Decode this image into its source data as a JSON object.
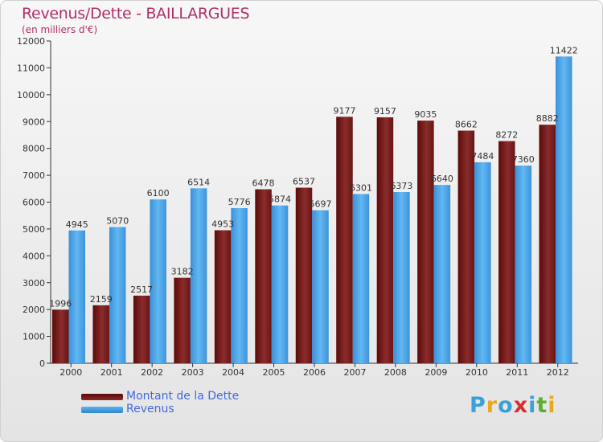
{
  "header": {
    "title": "Revenus/Dette - BAILLARGUES",
    "subtitle": "(en milliers d'€)"
  },
  "legend": [
    {
      "label": "Montant de la Dette",
      "color": "#7a1a1a"
    },
    {
      "label": "Revenus",
      "color": "#4aa3e6"
    }
  ],
  "logo": {
    "text": "Proxiti",
    "letters": [
      {
        "ch": "P",
        "color": "#3aa0d8"
      },
      {
        "ch": "r",
        "color": "#e8a820"
      },
      {
        "ch": "o",
        "color": "#3aa0d8"
      },
      {
        "ch": "x",
        "color": "#d83030"
      },
      {
        "ch": "i",
        "color": "#3aa0d8"
      },
      {
        "ch": "t",
        "color": "#5ab030"
      },
      {
        "ch": "i",
        "color": "#e8a820"
      }
    ]
  },
  "chart_data": {
    "type": "bar",
    "title": "Revenus/Dette - BAILLARGUES",
    "subtitle": "(en milliers d'€)",
    "categories": [
      "2000",
      "2001",
      "2002",
      "2003",
      "2004",
      "2005",
      "2006",
      "2007",
      "2008",
      "2009",
      "2010",
      "2011",
      "2012"
    ],
    "series": [
      {
        "name": "Montant de la Dette",
        "color": "#7a1a1a",
        "values": [
          1996,
          2159,
          2517,
          3182,
          4953,
          6478,
          6537,
          9177,
          9157,
          9035,
          8662,
          8272,
          8882
        ],
        "labels": [
          "1996",
          "2159",
          "2517",
          "3182",
          "4953",
          "6478",
          "6537",
          "9177",
          "9157",
          "9035",
          "8662",
          "8272",
          "8882"
        ]
      },
      {
        "name": "Revenus",
        "color": "#4aa3e6",
        "values": [
          4945,
          5070,
          6100,
          6514,
          5776,
          5874,
          5697,
          6301,
          6373,
          6640,
          7484,
          7360,
          11422
        ],
        "labels": [
          "4945",
          "5070",
          "6100",
          "6514",
          "5776",
          "5874",
          "5697",
          "6301",
          "6373",
          "6640",
          "7484",
          "7360",
          "11422"
        ]
      }
    ],
    "ylim": [
      0,
      12000
    ],
    "yticks": [
      0,
      1000,
      2000,
      3000,
      4000,
      5000,
      6000,
      7000,
      8000,
      9000,
      10000,
      11000,
      12000
    ],
    "ytick_labels": [
      "0",
      "1000",
      "2000",
      "3000",
      "4000",
      "5000",
      "6000",
      "7000",
      "8000",
      "9000",
      "10000",
      "11000",
      "12000"
    ],
    "grid": false,
    "legend_position": "bottom-left"
  }
}
